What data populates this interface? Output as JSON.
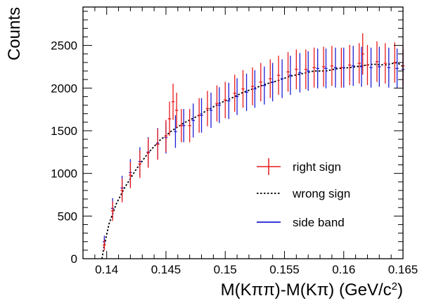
{
  "chart_data": {
    "type": "scatter",
    "xlim": [
      0.138,
      0.165
    ],
    "ylim": [
      0,
      2950
    ],
    "x_ticks": [
      0.14,
      0.145,
      0.15,
      0.155,
      0.16,
      0.165
    ],
    "x_tick_labels": [
      "0.14",
      "0.145",
      "0.15",
      "0.155",
      "0.16",
      "0.165"
    ],
    "y_ticks": [
      0,
      500,
      1000,
      1500,
      2000,
      2500
    ],
    "y_tick_labels": [
      "0",
      "500",
      "1000",
      "1500",
      "2000",
      "2500"
    ],
    "xlabel_main": "M(Kππ)-M(Kπ) (GeV/c",
    "xlabel_sup": "2",
    "xlabel_end": ")",
    "ylabel": "Counts",
    "legend_position": "center-right",
    "grid": false,
    "series": [
      {
        "name": "right sign",
        "style": "points-with-error-bars",
        "color": "#e8191a",
        "x": [
          0.1398,
          0.1405,
          0.1413,
          0.142,
          0.1428,
          0.1435,
          0.1443,
          0.145,
          0.1453,
          0.1456,
          0.1459,
          0.1463,
          0.147,
          0.1478,
          0.1485,
          0.1493,
          0.15,
          0.1508,
          0.1515,
          0.1523,
          0.153,
          0.1538,
          0.1545,
          0.1553,
          0.156,
          0.1568,
          0.1575,
          0.1583,
          0.159,
          0.1598,
          0.1605,
          0.1613,
          0.1616,
          0.162,
          0.1628,
          0.1635,
          0.1643,
          0.165
        ],
        "y": [
          160,
          560,
          800,
          980,
          1110,
          1240,
          1340,
          1440,
          1640,
          1840,
          1740,
          1560,
          1560,
          1680,
          1760,
          1820,
          1860,
          1940,
          1990,
          2020,
          2070,
          2110,
          2150,
          2190,
          2220,
          2220,
          2240,
          2250,
          2260,
          2240,
          2270,
          2290,
          2400,
          2270,
          2310,
          2290,
          2300,
          2260
        ]
      },
      {
        "name": "wrong sign",
        "style": "dotted-line",
        "color": "#000000",
        "x": [
          0.1396,
          0.1398,
          0.1402,
          0.1408,
          0.1415,
          0.1425,
          0.1435,
          0.1445,
          0.1455,
          0.1465,
          0.1475,
          0.1485,
          0.1495,
          0.1505,
          0.1515,
          0.1525,
          0.1535,
          0.1545,
          0.1555,
          0.1565,
          0.1575,
          0.1585,
          0.1595,
          0.1605,
          0.1615,
          0.1625,
          0.1635,
          0.1645,
          0.165
        ],
        "y": [
          0,
          160,
          410,
          640,
          830,
          1050,
          1240,
          1390,
          1500,
          1590,
          1660,
          1740,
          1820,
          1880,
          1950,
          2000,
          2050,
          2090,
          2140,
          2170,
          2200,
          2200,
          2230,
          2240,
          2260,
          2280,
          2270,
          2300,
          2250
        ]
      },
      {
        "name": "side band",
        "style": "points-with-error-bars",
        "color": "#1c1cd6",
        "x": [
          0.1398,
          0.1405,
          0.1413,
          0.142,
          0.1428,
          0.1435,
          0.1443,
          0.145,
          0.1458,
          0.1465,
          0.1473,
          0.148,
          0.1488,
          0.1495,
          0.1503,
          0.151,
          0.1518,
          0.1525,
          0.1533,
          0.154,
          0.1548,
          0.1555,
          0.1563,
          0.157,
          0.1578,
          0.1585,
          0.1593,
          0.16,
          0.1608,
          0.1615,
          0.1623,
          0.163,
          0.1638,
          0.1645,
          0.165
        ],
        "y": [
          200,
          590,
          830,
          1010,
          1140,
          1250,
          1350,
          1420,
          1490,
          1560,
          1620,
          1680,
          1740,
          1800,
          1850,
          1900,
          1950,
          1990,
          2030,
          2070,
          2110,
          2150,
          2180,
          2200,
          2230,
          2230,
          2240,
          2240,
          2260,
          2250,
          2240,
          2250,
          2240,
          2230,
          2220
        ]
      }
    ]
  },
  "legend": {
    "items": [
      {
        "label": "right sign",
        "color": "#e8191a",
        "style": "cross"
      },
      {
        "label": "wrong sign",
        "color": "#000000",
        "style": "dotted"
      },
      {
        "label": "side band",
        "color": "#1c1cd6",
        "style": "line"
      }
    ]
  }
}
